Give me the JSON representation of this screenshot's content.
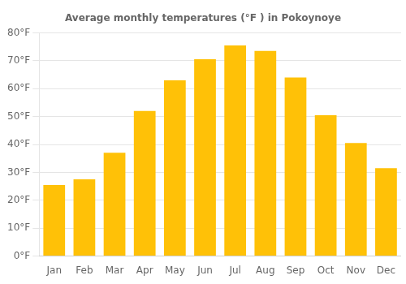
{
  "chart_data": {
    "type": "bar",
    "title": "Average monthly temperatures (°F ) in Pokoynoye",
    "categories": [
      "Jan",
      "Feb",
      "Mar",
      "Apr",
      "May",
      "Jun",
      "Jul",
      "Aug",
      "Sep",
      "Oct",
      "Nov",
      "Dec"
    ],
    "values": [
      25.5,
      27.5,
      37.0,
      52.0,
      63.0,
      70.5,
      75.5,
      73.5,
      64.0,
      50.5,
      40.5,
      31.5
    ],
    "color": "#FFC107",
    "ylim": [
      0,
      80
    ],
    "yticks": [
      {
        "value": 0,
        "label": "0°F"
      },
      {
        "value": 10,
        "label": "10°F"
      },
      {
        "value": 20,
        "label": "20°F"
      },
      {
        "value": 30,
        "label": "30°F"
      },
      {
        "value": 40,
        "label": "40°F"
      },
      {
        "value": 50,
        "label": "50°F"
      },
      {
        "value": 60,
        "label": "60°F"
      },
      {
        "value": 70,
        "label": "70°F"
      },
      {
        "value": 80,
        "label": "80°F"
      }
    ],
    "grid": true
  }
}
